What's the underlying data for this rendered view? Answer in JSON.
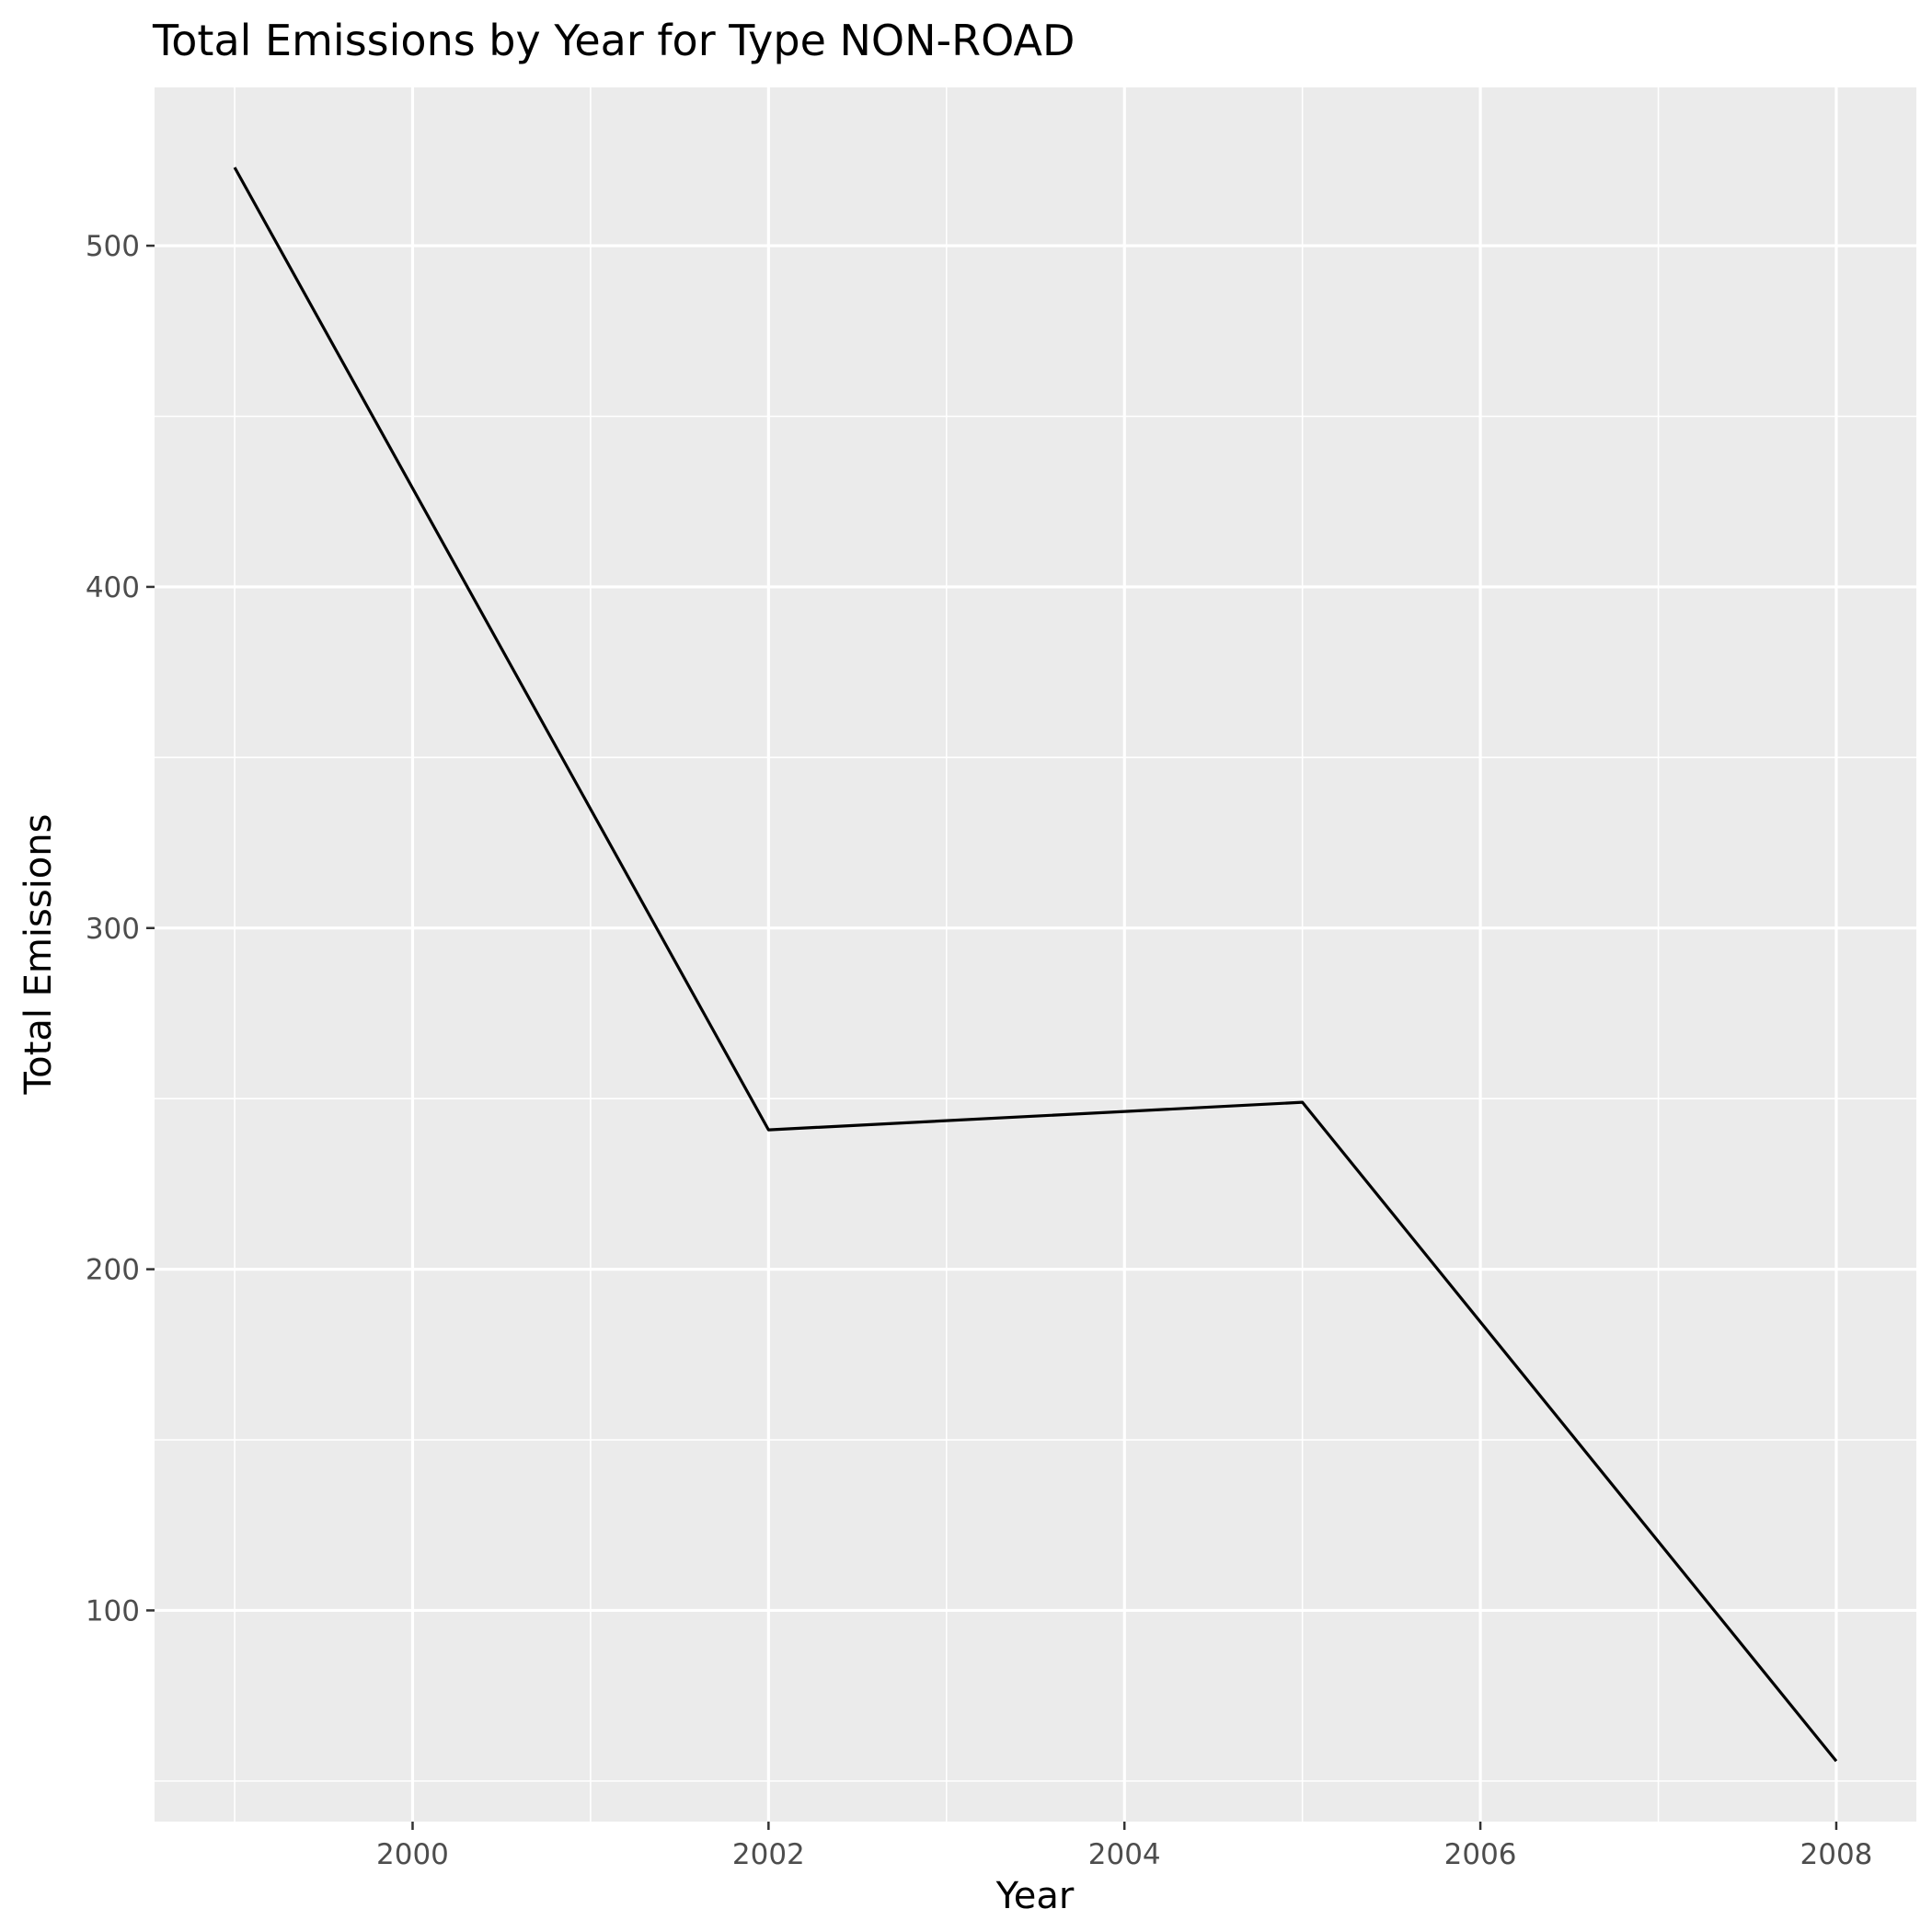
{
  "chart_data": {
    "type": "line",
    "title": "Total Emissions by Year for Type NON-ROAD",
    "xlabel": "Year",
    "ylabel": "Total Emissions",
    "x": [
      1999,
      2002,
      2005,
      2008
    ],
    "series": [
      {
        "values": [
          522.94,
          240.85,
          248.93,
          55.82
        ]
      }
    ],
    "xlim": [
      1998.55,
      2008.45
    ],
    "ylim": [
      38.1,
      546.4
    ],
    "x_ticks": [
      2000,
      2002,
      2004,
      2006,
      2008
    ],
    "x_tick_labels": [
      "2000",
      "2002",
      "2004",
      "2006",
      "2008"
    ],
    "y_ticks": [
      100,
      200,
      300,
      400,
      500
    ],
    "y_tick_labels": [
      "100",
      "200",
      "300",
      "400",
      "500"
    ],
    "x_minor_ticks": [
      1999,
      2001,
      2003,
      2005,
      2007
    ],
    "y_minor_ticks": [
      50,
      150,
      250,
      350,
      450
    ],
    "grid": true,
    "legend": "none",
    "colors": {
      "panel": "#ebebeb",
      "grid": "#ffffff",
      "line": "#000000",
      "tick_text": "#4d4d4d",
      "tick_mark": "#333333"
    }
  }
}
